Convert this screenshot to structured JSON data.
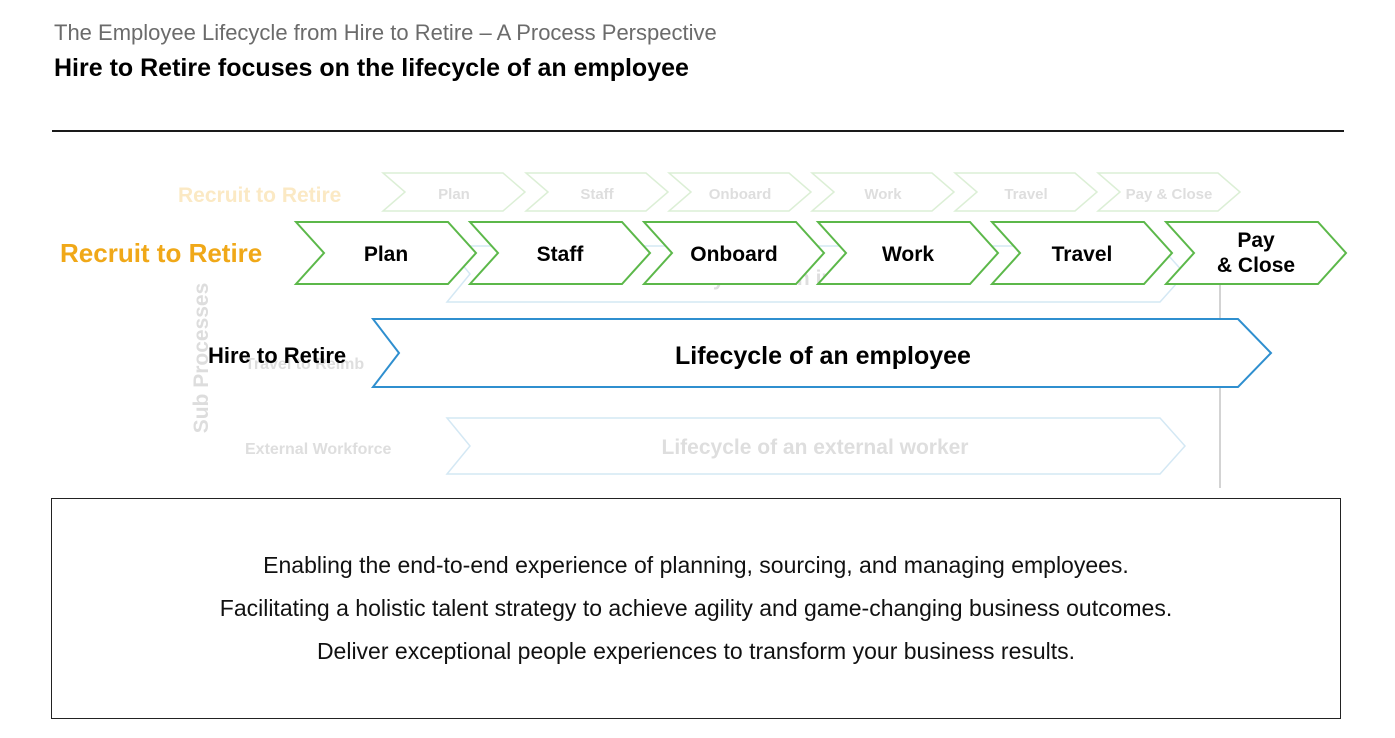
{
  "header": {
    "subtitle": "The Employee Lifecycle from Hire to Retire – A Process Perspective",
    "title": "Hire to Retire focuses on the lifecycle of an employee"
  },
  "diagram": {
    "ghost_chain": {
      "label": "Recruit to Retire",
      "steps": [
        "Plan",
        "Staff",
        "Onboard",
        "Work",
        "Travel",
        "Pay & Close"
      ]
    },
    "main_chain": {
      "label": "Recruit to Retire",
      "steps": [
        "Plan",
        "Staff",
        "Onboard",
        "Work",
        "Travel"
      ],
      "last_step_lines": [
        "Pay",
        "& Close"
      ]
    },
    "sub_processes_label": "Sub Processes",
    "ghost_rows": {
      "internal_worker": "Lifecycle of an internal worker",
      "travel_label": "Travel to Reimb",
      "external_label": "External Workforce",
      "external_worker": "Lifecycle of an external worker"
    },
    "hire_to_retire": {
      "label": "Hire to Retire",
      "band_text": "Lifecycle of an employee"
    }
  },
  "info_box": {
    "lines": [
      "Enabling the end-to-end experience of planning, sourcing, and managing employees.",
      "Facilitating a holistic talent strategy to achieve agility and game-changing business outcomes.",
      "Deliver exceptional people experiences to transform your business results."
    ]
  },
  "colors": {
    "accent_orange": "#f0a818",
    "green": "#5cb84a",
    "blue": "#2f8fcf",
    "faded_green": "#dcefd6",
    "faded_blue": "#d4e8f4",
    "faded_text": "#dedede"
  }
}
